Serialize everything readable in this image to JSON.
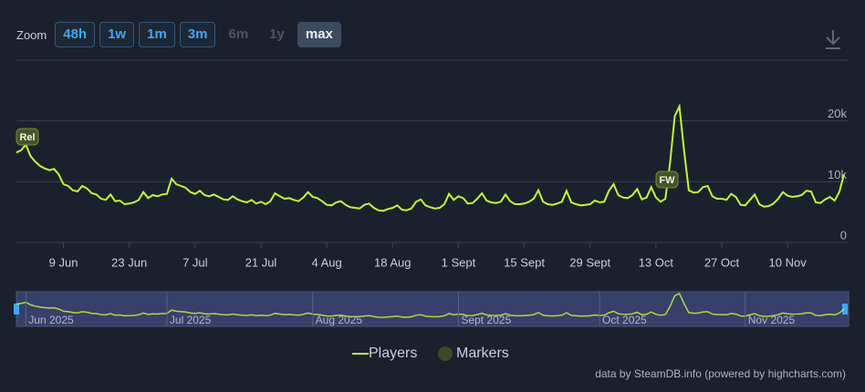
{
  "zoom": {
    "label": "Zoom",
    "buttons": [
      "48h",
      "1w",
      "1m",
      "3m",
      "6m",
      "1y",
      "max"
    ]
  },
  "legend": {
    "markers": "Markers"
  },
  "credit": "data by SteamDB.info (powered by highcharts.com)",
  "markers": [
    "Rel",
    "FW"
  ],
  "navigator": {
    "labels": [
      "Jun 2025",
      "Jul 2025",
      "Aug 2025",
      "Sept 2025",
      "Oct 2025",
      "Nov 2025"
    ]
  },
  "chart_data": {
    "type": "line",
    "categories": [
      null,
      null,
      null,
      null,
      null,
      null,
      null,
      null,
      null,
      null,
      "9 Jun",
      null,
      null,
      null,
      null,
      null,
      null,
      null,
      null,
      null,
      null,
      null,
      null,
      null,
      "23 Jun",
      null,
      null,
      null,
      null,
      null,
      null,
      null,
      null,
      null,
      null,
      null,
      null,
      null,
      "7 Jul",
      null,
      null,
      null,
      null,
      null,
      null,
      null,
      null,
      null,
      null,
      null,
      null,
      null,
      "21 Jul",
      null,
      null,
      null,
      null,
      null,
      null,
      null,
      null,
      null,
      null,
      null,
      null,
      null,
      "4 Aug",
      null,
      null,
      null,
      null,
      null,
      null,
      null,
      null,
      null,
      null,
      null,
      null,
      null,
      "18 Aug",
      null,
      null,
      null,
      null,
      null,
      null,
      null,
      null,
      null,
      null,
      null,
      null,
      null,
      "1 Sept",
      null,
      null,
      null,
      null,
      null,
      null,
      null,
      null,
      null,
      null,
      null,
      null,
      null,
      "15 Sept",
      null,
      null,
      null,
      null,
      null,
      null,
      null,
      null,
      null,
      null,
      null,
      null,
      null,
      "29 Sept",
      null,
      null,
      null,
      null,
      null,
      null,
      null,
      null,
      null,
      null,
      null,
      null,
      null,
      "13 Oct",
      null,
      null,
      null,
      null,
      null,
      null,
      null,
      null,
      null,
      null,
      null,
      null,
      null,
      "27 Oct",
      null,
      null,
      null,
      null,
      null,
      null,
      null,
      null,
      null,
      null,
      null,
      null,
      null,
      "10 Nov",
      null,
      null,
      null,
      null,
      null,
      null,
      null,
      null,
      null,
      null,
      null,
      null
    ],
    "series": [
      {
        "name": "Players",
        "color": "#c2f53a",
        "values": [
          14800,
          15200,
          16100,
          14200,
          13300,
          12600,
          12200,
          11900,
          12100,
          11200,
          9600,
          9300,
          8600,
          8400,
          9300,
          8900,
          8100,
          7900,
          7200,
          7000,
          7900,
          6800,
          6900,
          6300,
          6400,
          6600,
          7000,
          8300,
          7300,
          7800,
          7600,
          7900,
          8000,
          10500,
          9600,
          9300,
          9000,
          8300,
          8000,
          8500,
          7800,
          7600,
          7900,
          7500,
          7100,
          7000,
          7600,
          7100,
          6800,
          6600,
          7000,
          6400,
          6700,
          6300,
          6800,
          8100,
          7600,
          7200,
          7300,
          7000,
          6800,
          7400,
          8300,
          7500,
          7300,
          6800,
          6200,
          6100,
          6600,
          6800,
          6200,
          5800,
          5700,
          5600,
          6200,
          6400,
          5700,
          5300,
          5200,
          5500,
          5700,
          6100,
          5400,
          5300,
          5600,
          6700,
          7100,
          6100,
          5800,
          5600,
          5700,
          6300,
          8000,
          7000,
          7600,
          7300,
          6400,
          6500,
          7200,
          8100,
          6900,
          6600,
          6500,
          6700,
          7900,
          6800,
          6300,
          6300,
          6400,
          6700,
          7200,
          8600,
          6700,
          6300,
          6200,
          6400,
          6700,
          8500,
          6600,
          6300,
          6100,
          6200,
          6300,
          6900,
          6600,
          6700,
          8500,
          9600,
          7800,
          7400,
          7300,
          7800,
          8800,
          7100,
          7400,
          9100,
          7400,
          6700,
          7200,
          13000,
          20800,
          22400,
          15000,
          8600,
          8200,
          8300,
          9100,
          9300,
          7600,
          7200,
          7200,
          7000,
          8000,
          7500,
          6200,
          6100,
          7000,
          7900,
          6300,
          5900,
          6000,
          6400,
          7200,
          8300,
          7700,
          7500,
          7600,
          7800,
          8500,
          8400,
          6600,
          6500,
          7100,
          7500,
          6900,
          8300,
          11200
        ]
      }
    ],
    "ylim": [
      0,
      30000
    ],
    "yticks": [
      0,
      {
        "value": 10000,
        "label": "10k"
      },
      {
        "value": 20000,
        "label": "20k"
      }
    ],
    "grid": true
  }
}
